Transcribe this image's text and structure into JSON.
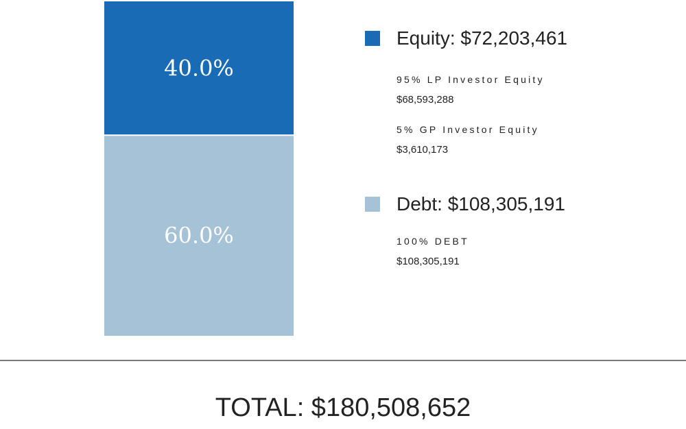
{
  "chart_data": {
    "type": "bar",
    "categories": [
      "Equity",
      "Debt"
    ],
    "values": [
      72203461,
      108305191
    ],
    "percent_labels": [
      "40.0%",
      "60.0%"
    ],
    "colors": [
      "#1a6bb6",
      "#a5c2d7"
    ],
    "stacked": true
  },
  "legend": {
    "equity": {
      "title": "Equity: $72,203,461",
      "color": "#1a6bb6",
      "items": [
        {
          "label": "95% LP Investor Equity",
          "value": "$68,593,288"
        },
        {
          "label": "5% GP Investor Equity",
          "value": "$3,610,173"
        }
      ]
    },
    "debt": {
      "title": "Debt: $108,305,191",
      "color": "#a5c2d7",
      "items": [
        {
          "label": "100% DEBT",
          "value": "$108,305,191"
        }
      ]
    }
  },
  "total": "TOTAL: $180,508,652"
}
